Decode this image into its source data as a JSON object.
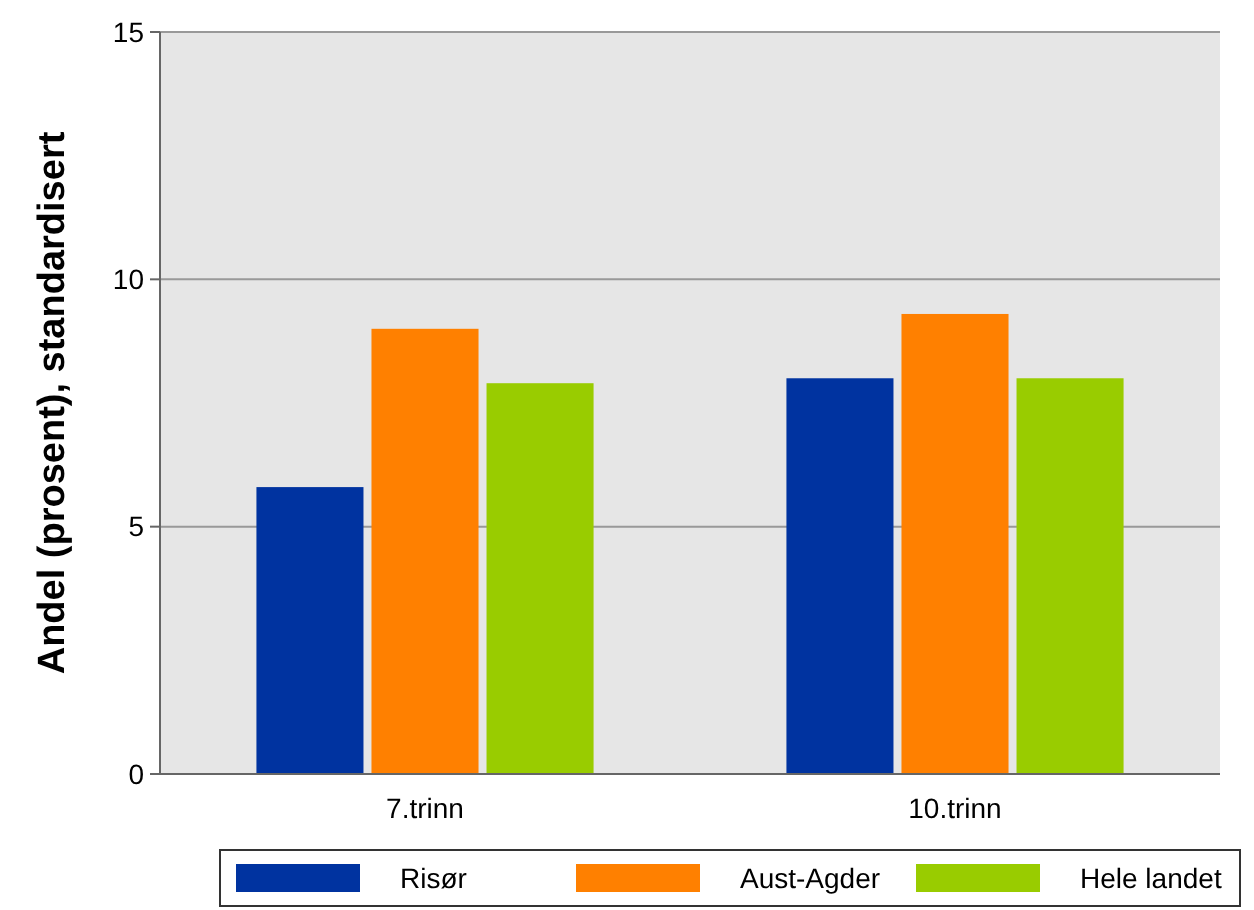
{
  "chart_data": {
    "type": "bar",
    "ylabel": "Andel (prosent), standardisert",
    "categories": [
      "7.trinn",
      "10.trinn"
    ],
    "series": [
      {
        "name": "Risør",
        "color": "#0033a0",
        "values": [
          5.8,
          8.0
        ]
      },
      {
        "name": "Aust-Agder",
        "color": "#ff8000",
        "values": [
          9.0,
          9.3
        ]
      },
      {
        "name": "Hele landet",
        "color": "#99cc00",
        "values": [
          7.9,
          8.0
        ]
      }
    ],
    "ylim": [
      0,
      15
    ],
    "yticks": [
      0,
      5,
      10,
      15
    ],
    "grid": "y",
    "legend": "bottom"
  }
}
